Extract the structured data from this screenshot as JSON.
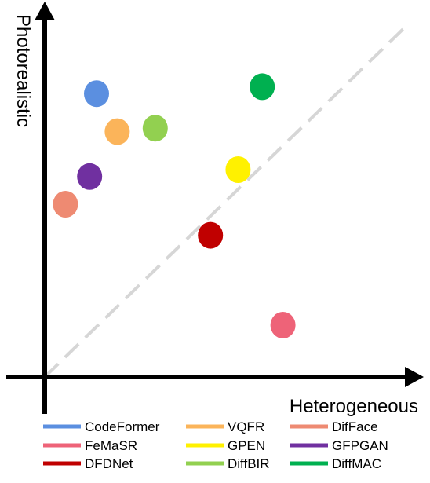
{
  "chart_data": {
    "type": "scatter",
    "title": "",
    "xlabel": "Heterogeneous",
    "ylabel": "Photorealistic",
    "xlim": [
      0,
      10
    ],
    "ylim": [
      0,
      10
    ],
    "grid": false,
    "diagonal_reference_line": true,
    "legend_placement": "bottom",
    "series": [
      {
        "name": "CodeFormer",
        "color": "#5B8FE0",
        "x": 1.5,
        "y": 8.2
      },
      {
        "name": "VQFR",
        "color": "#FBB45A",
        "x": 2.1,
        "y": 7.1
      },
      {
        "name": "DifFace",
        "color": "#EE8A72",
        "x": 0.6,
        "y": 5.0
      },
      {
        "name": "FeMaSR",
        "color": "#EE6378",
        "x": 6.9,
        "y": 1.5
      },
      {
        "name": "GPEN",
        "color": "#FFF100",
        "x": 5.6,
        "y": 6.0
      },
      {
        "name": "GFPGAN",
        "color": "#7030A0",
        "x": 1.3,
        "y": 5.8
      },
      {
        "name": "DFDNet",
        "color": "#C00000",
        "x": 4.8,
        "y": 4.1
      },
      {
        "name": "DiffBIR",
        "color": "#92D050",
        "x": 3.2,
        "y": 7.2
      },
      {
        "name": "DiffMAC",
        "color": "#00B050",
        "x": 6.3,
        "y": 8.4
      }
    ]
  }
}
